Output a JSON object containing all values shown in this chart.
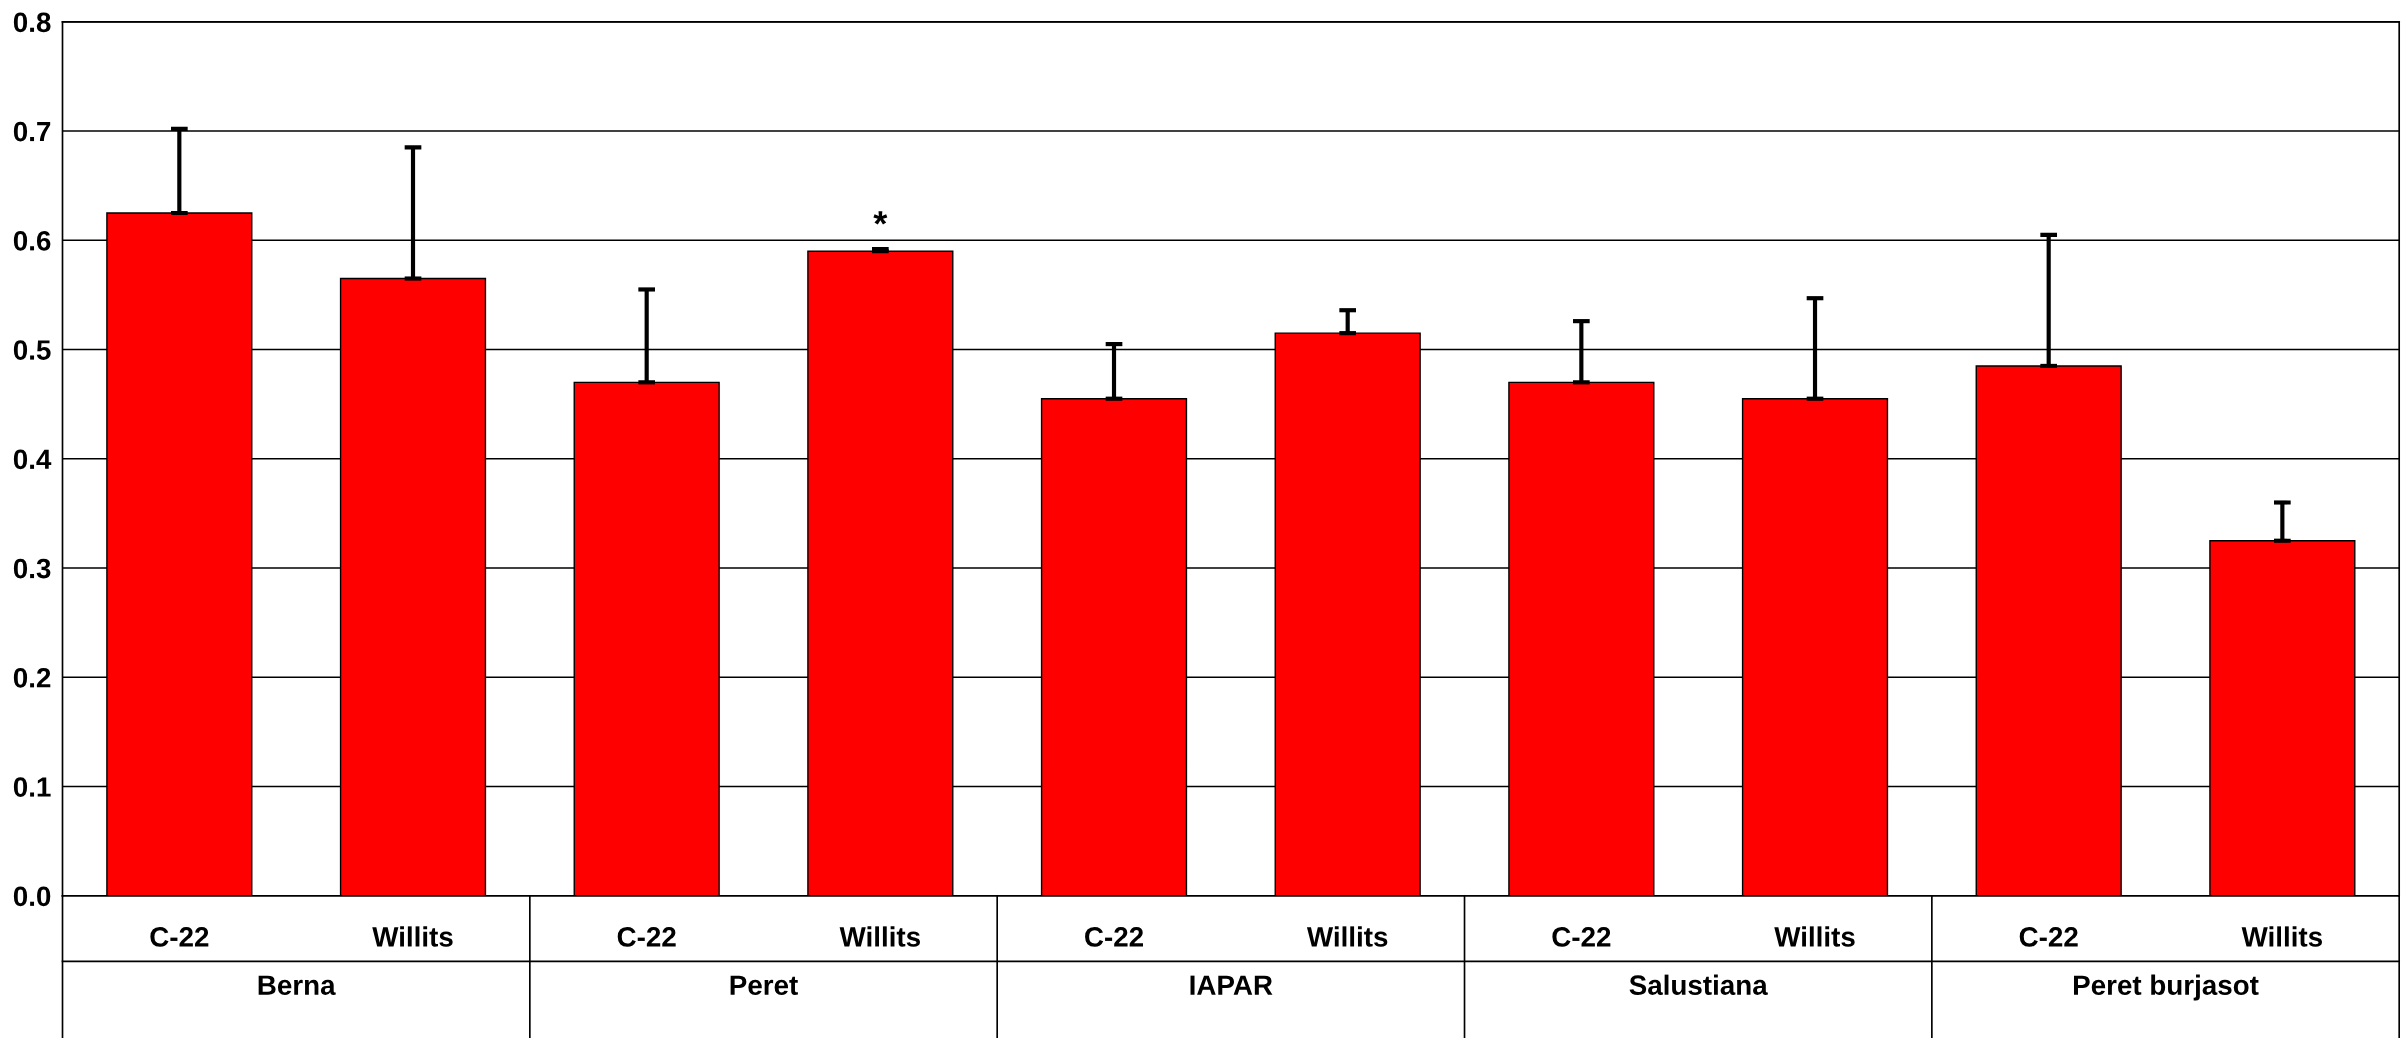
{
  "chart_data": {
    "type": "bar",
    "categories": [
      "C-22",
      "Willits",
      "C-22",
      "Willits",
      "C-22",
      "Willits",
      "C-22",
      "Willits",
      "C-22",
      "Willits"
    ],
    "values": [
      0.625,
      0.565,
      0.47,
      0.59,
      0.455,
      0.515,
      0.47,
      0.455,
      0.485,
      0.325
    ],
    "errors": [
      [
        0.625,
        0.702
      ],
      [
        0.565,
        0.685
      ],
      [
        0.47,
        0.555
      ],
      [
        0.59,
        0.592
      ],
      [
        0.455,
        0.505
      ],
      [
        0.515,
        0.536
      ],
      [
        0.47,
        0.526
      ],
      [
        0.455,
        0.547
      ],
      [
        0.485,
        0.605
      ],
      [
        0.325,
        0.36
      ]
    ],
    "color": "#ff0000",
    "ylim": [
      0,
      0.8
    ],
    "yticks": [
      {
        "value": 0,
        "label": "0.0"
      },
      0.1,
      0.2,
      0.3,
      0.4,
      0.5,
      0.6,
      0.7,
      0.8
    ],
    "grid": "y",
    "annotations": [
      "Berna",
      "Peret",
      "IAPAR",
      "Salustiana",
      "Peret burjasot",
      {
        "text": "*",
        "y": 0.592
      }
    ]
  }
}
